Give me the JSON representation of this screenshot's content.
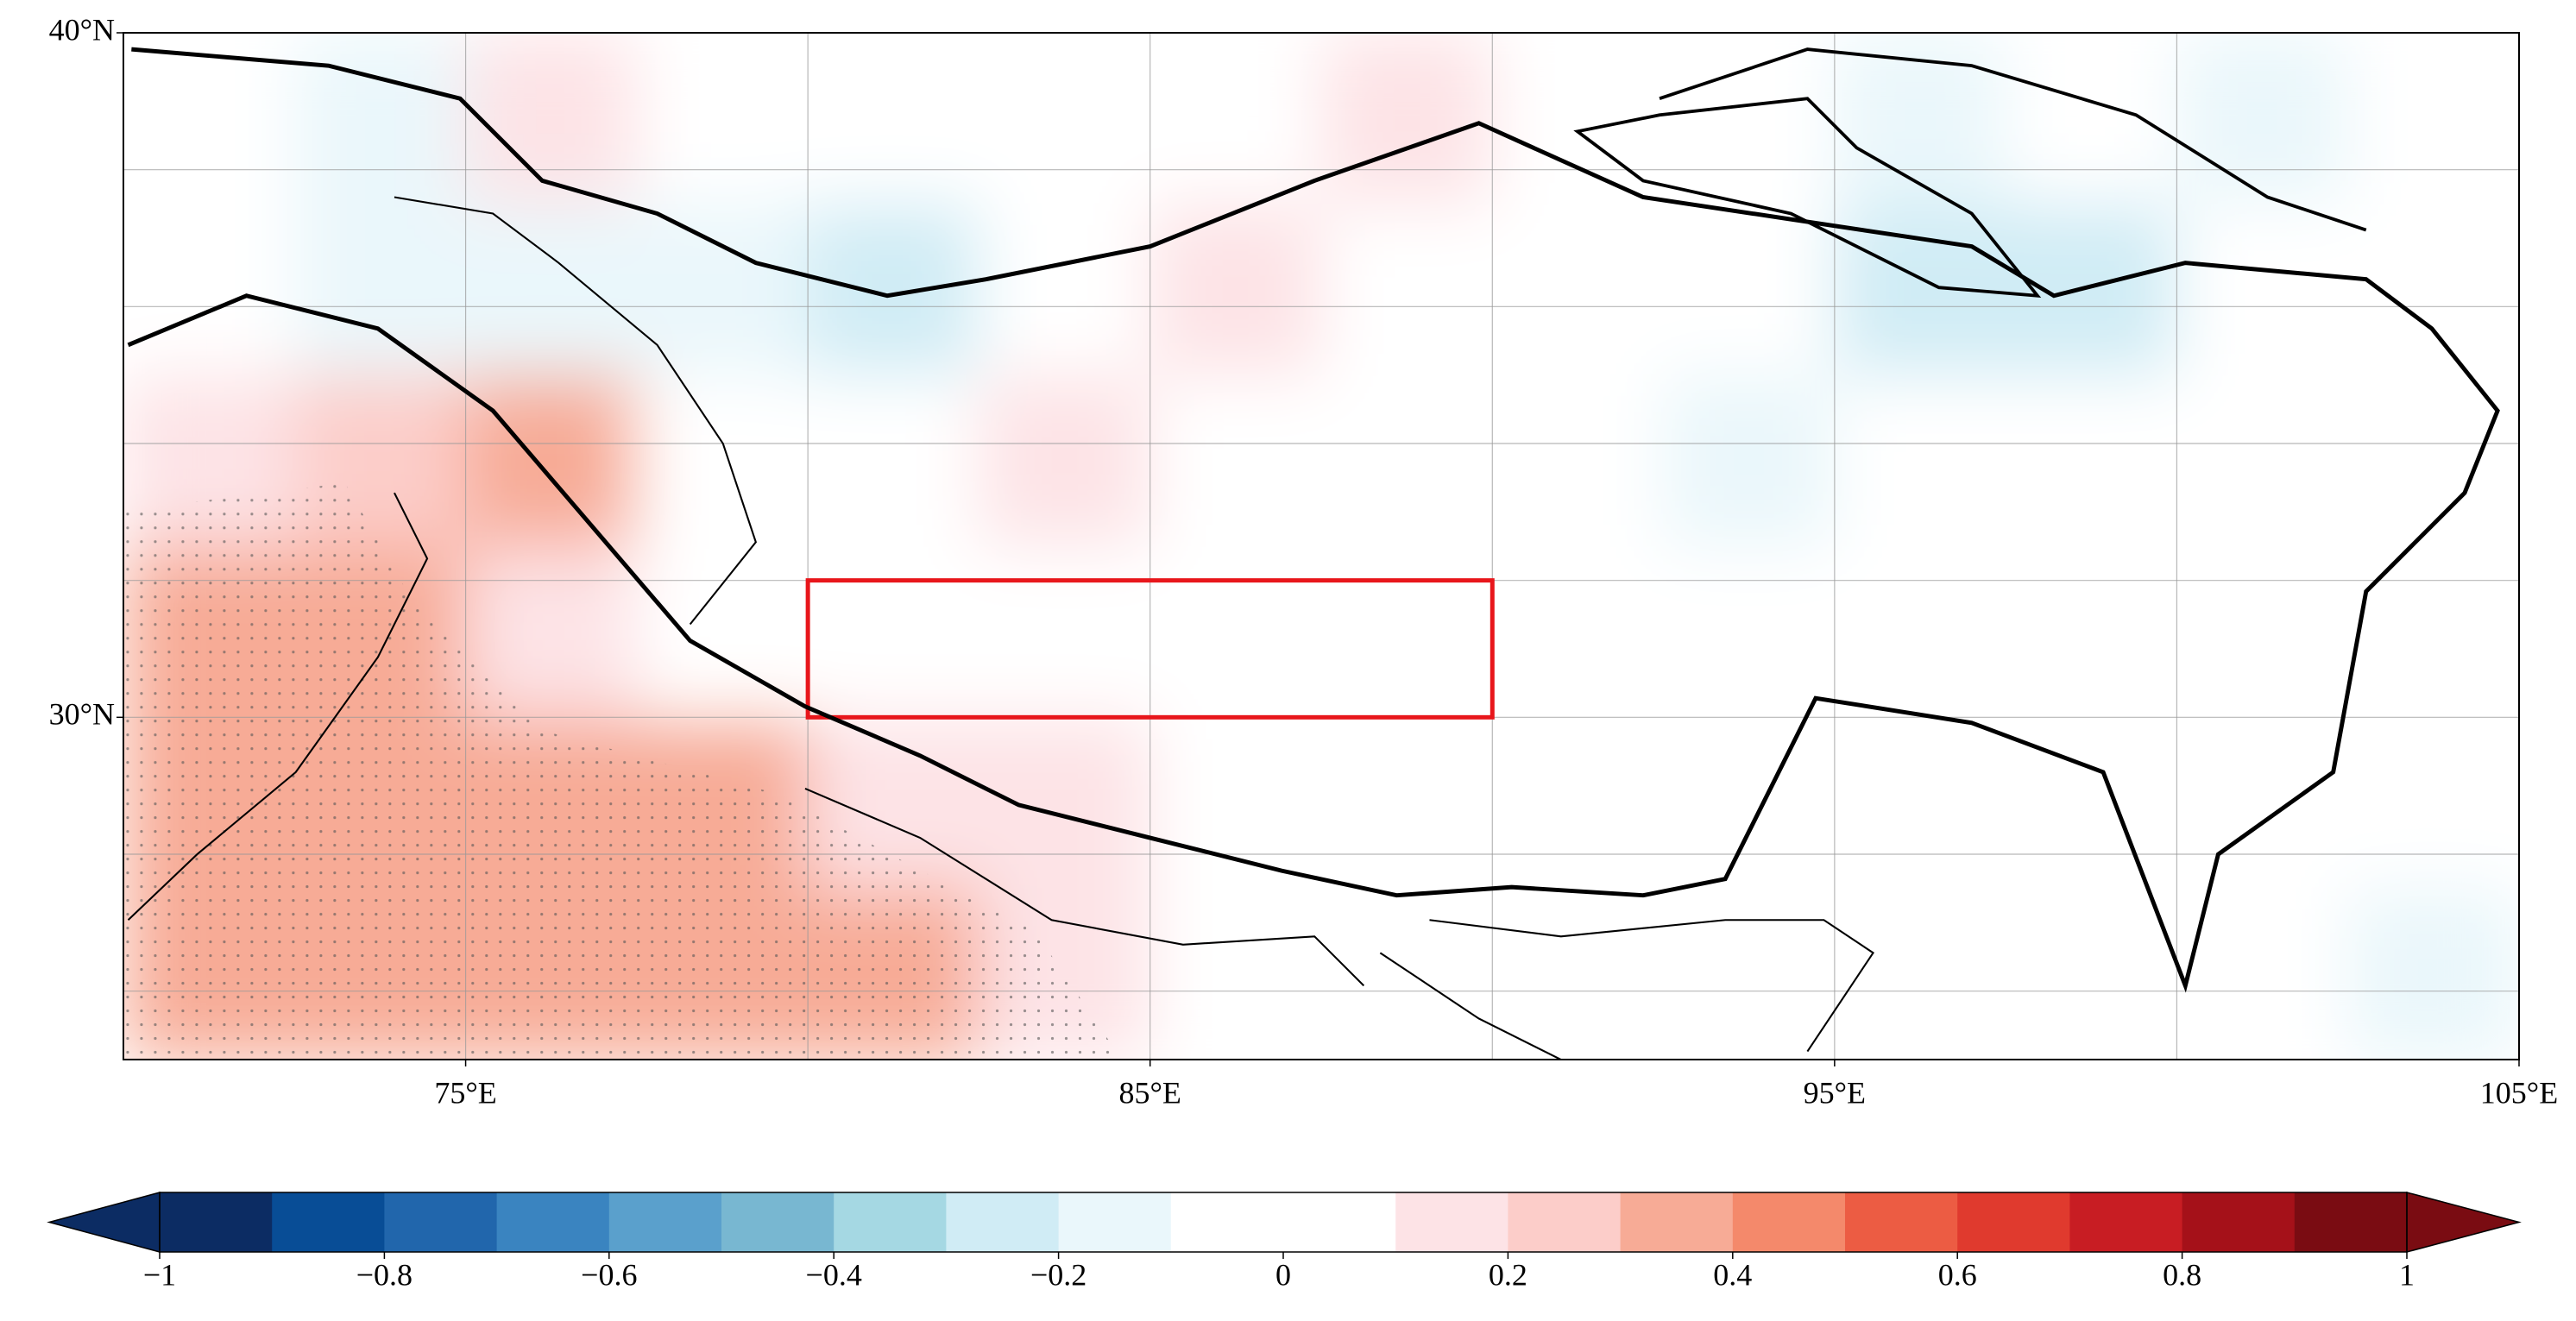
{
  "map": {
    "lonlim": [
      70,
      105
    ],
    "latlim": [
      25,
      40
    ],
    "xticks": [
      {
        "value": 75,
        "label": "75°E"
      },
      {
        "value": 85,
        "label": "85°E"
      },
      {
        "value": 95,
        "label": "95°E"
      },
      {
        "value": 105,
        "label": "105°E"
      }
    ],
    "yticks": [
      {
        "value": 30,
        "label": "30°N"
      },
      {
        "value": 40,
        "label": "40°N"
      }
    ],
    "xgrid": [
      75,
      80,
      85,
      90,
      95,
      100
    ],
    "ygrid": [
      26,
      28,
      30,
      32,
      34,
      36,
      38
    ],
    "box": {
      "lon": [
        80,
        90
      ],
      "lat": [
        30,
        32
      ],
      "color": "#e8161b"
    },
    "field": {
      "lon_edges": [
        70,
        72.5,
        75,
        77.5,
        80,
        82.5,
        85,
        87.5,
        90,
        92.5,
        95,
        97.5,
        100,
        102.5,
        105
      ],
      "lat_edges": [
        40,
        37.5,
        35,
        32.5,
        30,
        27.5,
        25
      ],
      "values": [
        [
          -0.1,
          -0.2,
          0.1,
          0,
          0,
          0.05,
          0,
          0.1,
          0,
          -0.1,
          -0.2,
          -0.1,
          -0.15,
          0
        ],
        [
          -0.1,
          -0.2,
          -0.15,
          -0.2,
          -0.25,
          -0.1,
          0.1,
          0,
          -0.05,
          -0.1,
          -0.25,
          -0.25,
          -0.1,
          0
        ],
        [
          0.15,
          0.25,
          0.3,
          -0.1,
          -0.1,
          0.1,
          0,
          0,
          -0.05,
          -0.15,
          -0.1,
          0,
          -0.05,
          -0.05
        ],
        [
          0.3,
          0.4,
          0.2,
          -0.05,
          -0.1,
          -0.05,
          0,
          0,
          0,
          -0.05,
          0,
          0,
          -0.05,
          -0.05
        ],
        [
          0.3,
          0.35,
          0.35,
          0.3,
          0.1,
          0.1,
          0,
          0.05,
          0.05,
          0,
          0,
          -0.05,
          -0.1,
          -0.1
        ],
        [
          0.3,
          0.3,
          0.35,
          0.4,
          0.35,
          0.2,
          0.05,
          0,
          0,
          0,
          0,
          0,
          -0.1,
          -0.15
        ]
      ]
    }
  },
  "colorbar": {
    "lim": [
      -1,
      1
    ],
    "colors": [
      "#0c2c63",
      "#084d96",
      "#2166ac",
      "#3a84c0",
      "#5aa0cc",
      "#78b7d1",
      "#a5d8e3",
      "#d0ecf5",
      "#eaf7fb",
      "#ffffff",
      "#ffffff",
      "#fde3e6",
      "#fccdc9",
      "#f7ab96",
      "#f4896b",
      "#ec5c43",
      "#e03a2e",
      "#c81d23",
      "#a51119",
      "#7a0c12"
    ],
    "extend": "both",
    "ticks": [
      {
        "value": -1,
        "label": "−1"
      },
      {
        "value": -0.8,
        "label": "−0.8"
      },
      {
        "value": -0.6,
        "label": "−0.6"
      },
      {
        "value": -0.4,
        "label": "−0.4"
      },
      {
        "value": -0.2,
        "label": "−0.2"
      },
      0,
      0.2,
      0.4,
      0.6,
      0.8,
      1
    ]
  }
}
